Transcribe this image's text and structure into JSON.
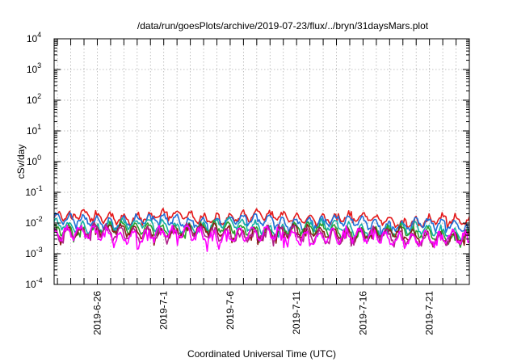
{
  "chart_data": {
    "type": "line",
    "title": "/data/run/goesPlots/archive/2019-07-23/flux/../bryn/31daysMars.plot",
    "xlabel": "Coordinated Universal Time (UTC)",
    "ylabel": "cSv/day",
    "yscale": "log",
    "ylim": [
      0.0001,
      10000
    ],
    "xlim": [
      "2019-06-22T18:00",
      "2019-07-24T00:00"
    ],
    "grid": true,
    "ytick_labels": [
      {
        "base": "10",
        "exp": "-4"
      },
      {
        "base": "10",
        "exp": "-3"
      },
      {
        "base": "10",
        "exp": "-2"
      },
      {
        "base": "10",
        "exp": "-1"
      },
      {
        "base": "10",
        "exp": "0"
      },
      {
        "base": "10",
        "exp": "1"
      },
      {
        "base": "10",
        "exp": "2"
      },
      {
        "base": "10",
        "exp": "3"
      },
      {
        "base": "10",
        "exp": "4"
      }
    ],
    "xticks": [
      "2019-6-26",
      "2019-7-1",
      "2019-7-6",
      "2019-7-11",
      "2019-7-16",
      "2019-7-21"
    ],
    "series": [
      {
        "color": "#e41a1c",
        "base": 0.016,
        "end": 0.01,
        "amp": 0.32
      },
      {
        "color": "#1f6fd8",
        "base": 0.012,
        "end": 0.0075,
        "amp": 0.32
      },
      {
        "color": "#13b0a6",
        "base": 0.008,
        "end": 0.0042,
        "amp": 0.35
      },
      {
        "color": "#2ca02c",
        "base": 0.0065,
        "end": 0.0036,
        "amp": 0.36
      },
      {
        "color": "#8b1a1a",
        "base": 0.0055,
        "end": 0.003,
        "amp": 0.38
      },
      {
        "color": "#b0208a",
        "base": 0.0048,
        "end": 0.0027,
        "amp": 0.4
      },
      {
        "color": "#ff00ff",
        "base": 0.0042,
        "end": 0.0026,
        "amp": 0.45
      }
    ]
  }
}
